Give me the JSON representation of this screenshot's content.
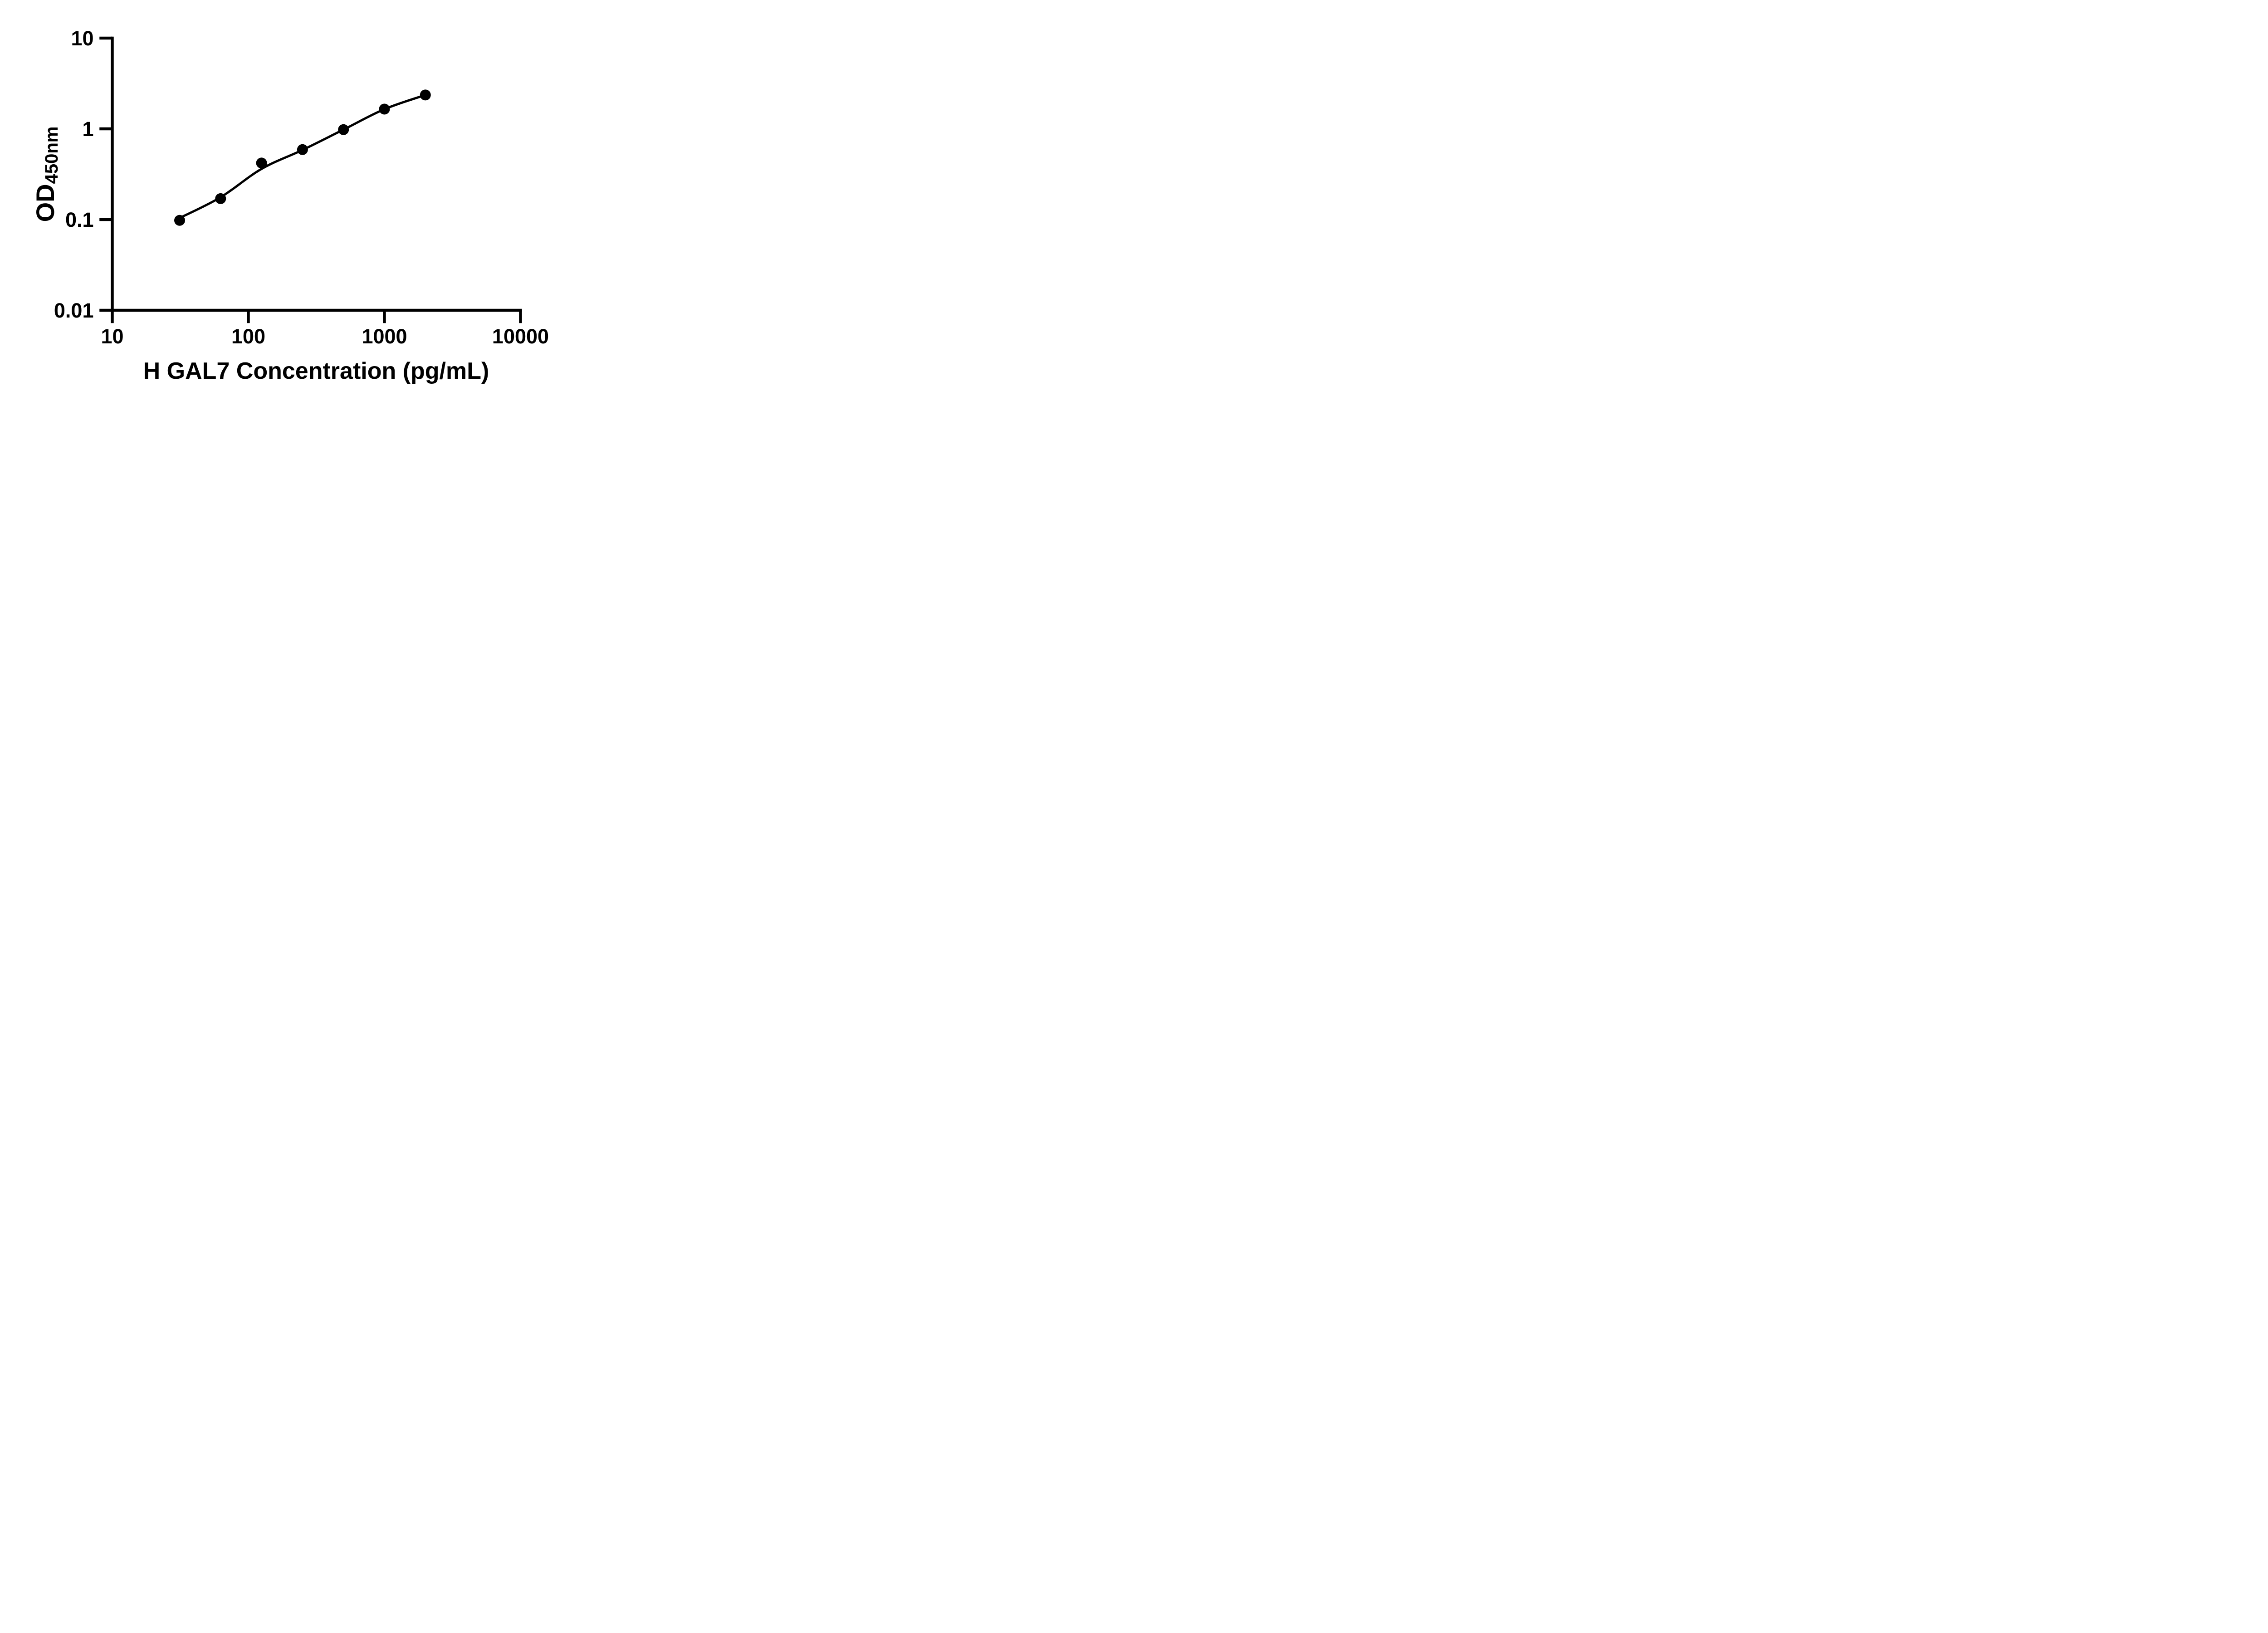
{
  "figure": {
    "background": "#ffffff",
    "ink": "#000000"
  },
  "title": {
    "text": "H GAL7 Concentration (pg/mL)"
  },
  "y_axis": {
    "label_main": "OD",
    "label_sub": "450nm",
    "scale": "log10",
    "range": [
      0.01,
      10
    ],
    "tick_labels": [
      "10",
      "1",
      "0.1",
      "0.01"
    ],
    "tick_values": [
      10,
      1,
      0.1,
      0.01
    ]
  },
  "x_axis": {
    "scale": "log10",
    "range": [
      10,
      10000
    ],
    "tick_labels": [
      "10",
      "100",
      "1000",
      "10000"
    ],
    "tick_values": [
      10,
      100,
      1000,
      10000
    ]
  },
  "chart_data": {
    "type": "scatter",
    "title": "H GAL7 Concentration (pg/mL)",
    "xlabel": "H GAL7 Concentration (pg/mL)",
    "ylabel": "OD450nm",
    "x_scale": "log10",
    "y_scale": "log10",
    "xlim": [
      10,
      10000
    ],
    "ylim": [
      0.01,
      10
    ],
    "grid": false,
    "legend": "none",
    "marker_color": "#000000",
    "line_color": "#000000",
    "series": [
      {
        "name": "standard-points",
        "role": "markers",
        "x": [
          31.25,
          62.5,
          125,
          250,
          500,
          1000,
          2000
        ],
        "y": [
          0.098,
          0.17,
          0.42,
          0.59,
          0.98,
          1.65,
          2.36
        ]
      },
      {
        "name": "fitted-curve",
        "role": "line",
        "x": [
          31.25,
          62.5,
          125,
          250,
          500,
          1000,
          2000
        ],
        "y": [
          0.104,
          0.176,
          0.362,
          0.585,
          0.98,
          1.646,
          2.36
        ]
      }
    ]
  }
}
